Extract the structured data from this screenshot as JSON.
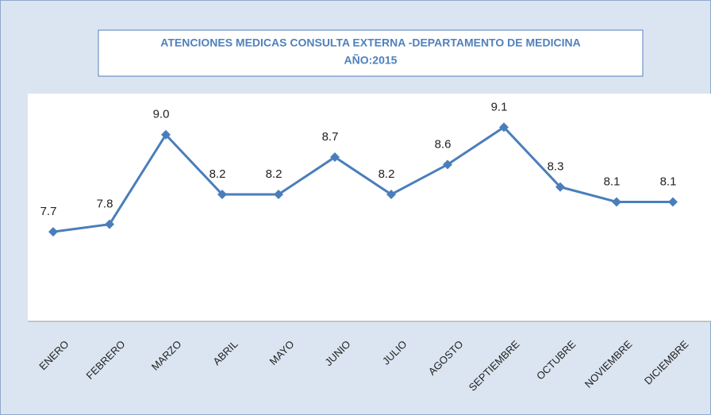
{
  "chart_data": {
    "type": "line",
    "title": "ATENCIONES MEDICAS CONSULTA EXTERNA -DEPARTAMENTO DE MEDICINA",
    "subtitle": "AÑO:2015",
    "categories": [
      "ENERO",
      "FEBRERO",
      "MARZO",
      "ABRIL",
      "MAYO",
      "JUNIO",
      "JULIO",
      "AGOSTO",
      "SEPTIEMBRE",
      "OCTUBRE",
      "NOVIEMBRE",
      "DICIEMBRE"
    ],
    "values": [
      7.7,
      7.8,
      9,
      8.2,
      8.2,
      8.7,
      8.2,
      8.6,
      9.1,
      8.3,
      8.1,
      8.1
    ],
    "value_labels": [
      "7.7",
      "7.8",
      "9.0",
      "8.2",
      "8.2",
      "8.7",
      "8.2",
      "8.6",
      "9.1",
      "8.3",
      "8.1",
      "8.1"
    ],
    "color": "#4a7ebb",
    "ylim": [
      6.5,
      9.55
    ]
  }
}
